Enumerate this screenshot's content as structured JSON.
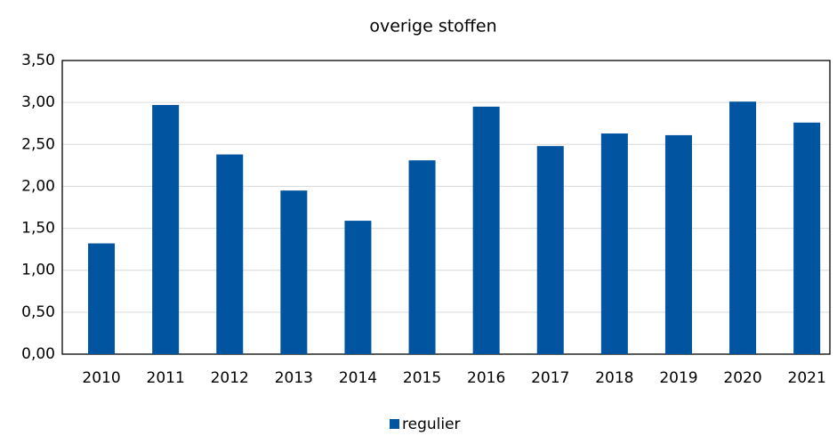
{
  "chart_data": {
    "type": "bar",
    "title": "overige stoffen",
    "categories": [
      "2010",
      "2011",
      "2012",
      "2013",
      "2014",
      "2015",
      "2016",
      "2017",
      "2018",
      "2019",
      "2020",
      "2021"
    ],
    "series": [
      {
        "name": "regulier",
        "color": "#0054a0",
        "values": [
          1.32,
          2.97,
          2.38,
          1.95,
          1.59,
          2.31,
          2.95,
          2.48,
          2.63,
          2.61,
          3.01,
          2.76
        ]
      }
    ],
    "ylim": [
      0,
      3.5
    ],
    "yticks": [
      {
        "value": 0,
        "label": "0,00"
      },
      {
        "value": 0.5,
        "label": "0,50"
      },
      {
        "value": 1,
        "label": "1,00"
      },
      {
        "value": 1.5,
        "label": "1,50"
      },
      {
        "value": 2,
        "label": "2,00"
      },
      {
        "value": 2.5,
        "label": "2,50"
      },
      {
        "value": 3,
        "label": "3,00"
      },
      {
        "value": 3.5,
        "label": "3,50"
      }
    ],
    "grid": true,
    "legend": "bottom"
  }
}
